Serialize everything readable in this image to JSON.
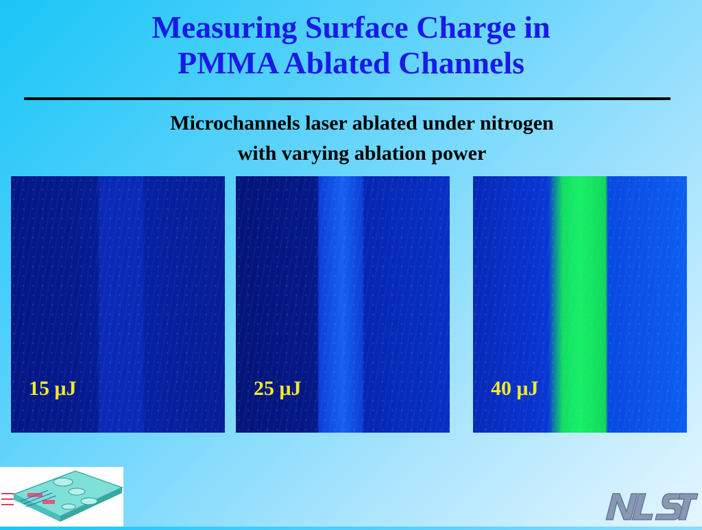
{
  "slide": {
    "title_line1": "Measuring Surface Charge in",
    "title_line2": "PMMA Ablated Channels",
    "subtitle_line1": "Microchannels laser ablated under nitrogen",
    "subtitle_line2": "with varying ablation power",
    "panels": [
      {
        "label": "15 μJ"
      },
      {
        "label": "25 μJ"
      },
      {
        "label": "40 μJ"
      }
    ],
    "logo_text": "NIST",
    "colors": {
      "title": "#1a1ae6",
      "label": "#f2ea2a",
      "channel_40uJ": "#18f066"
    }
  }
}
